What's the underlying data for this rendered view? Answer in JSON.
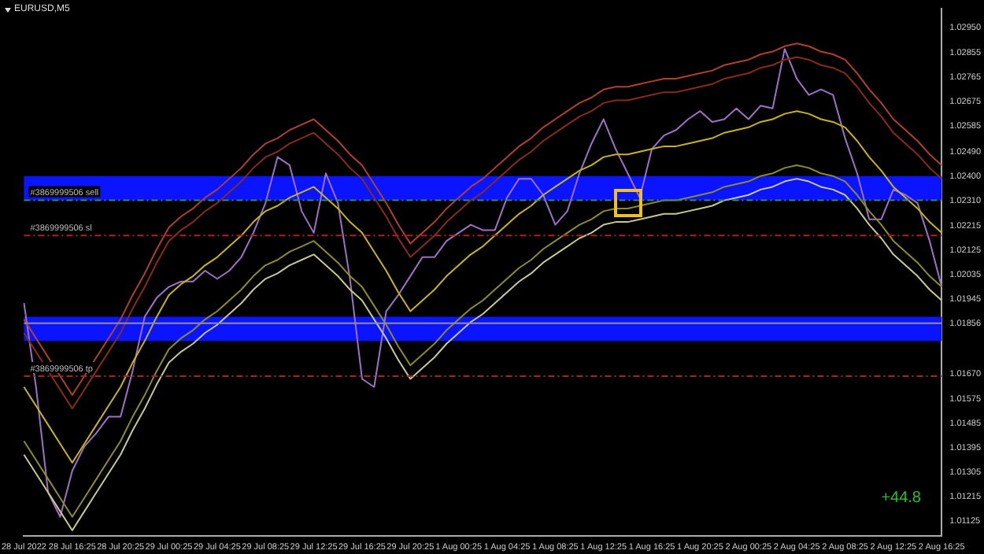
{
  "chart_data": {
    "type": "line",
    "title": "EURUSD,M5",
    "categories": [
      "28 Jul 2022",
      null,
      null,
      null,
      "28 Jul 16:25",
      null,
      null,
      null,
      "28 Jul 20:25",
      null,
      null,
      null,
      "29 Jul 00:25",
      null,
      null,
      null,
      "29 Jul 04:25",
      null,
      null,
      null,
      "29 Jul 08:25",
      null,
      null,
      null,
      "29 Jul 12:25",
      null,
      null,
      null,
      "29 Jul 16:25",
      null,
      null,
      null,
      "29 Jul 20:25",
      null,
      null,
      null,
      "1 Aug 00:25",
      null,
      null,
      null,
      "1 Aug 04:25",
      null,
      null,
      null,
      "1 Aug 08:25",
      null,
      null,
      null,
      "1 Aug 12:25",
      null,
      null,
      null,
      "1 Aug 16:25",
      null,
      null,
      null,
      "1 Aug 20:25",
      null,
      null,
      null,
      "2 Aug 00:25",
      null,
      null,
      null,
      "2 Aug 04:25",
      null,
      null,
      null,
      "2 Aug 08:25",
      null,
      null,
      null,
      "2 Aug 12:25",
      null,
      null,
      null,
      "2 Aug 16:25"
    ],
    "series": [
      {
        "color": "#b0402a",
        "values": [
          1.0187,
          1.018,
          1.0173,
          1.0166,
          1.0159,
          1.0166,
          1.0173,
          1.018,
          1.0187,
          1.0196,
          1.0204,
          1.0213,
          1.0221,
          1.0225,
          1.0228,
          1.0232,
          1.0235,
          1.0239,
          1.0243,
          1.0248,
          1.0252,
          1.0254,
          1.0257,
          1.0259,
          1.0261,
          1.0257,
          1.0253,
          1.0248,
          1.0244,
          1.0237,
          1.023,
          1.0222,
          1.0215,
          1.0219,
          1.0223,
          1.0228,
          1.0232,
          1.0236,
          1.0239,
          1.0243,
          1.0247,
          1.0251,
          1.0254,
          1.0258,
          1.0261,
          1.0264,
          1.0267,
          1.0269,
          1.0272,
          1.0273,
          1.0273,
          1.0274,
          1.0275,
          1.0276,
          1.0276,
          1.0277,
          1.0278,
          1.0279,
          1.0281,
          1.0282,
          1.0283,
          1.0285,
          1.0286,
          1.0288,
          1.0289,
          1.0288,
          1.0286,
          1.0285,
          1.0283,
          1.0278,
          1.0272,
          1.0267,
          1.0261,
          1.0257,
          1.0253,
          1.0248,
          1.0244
        ]
      },
      {
        "color": "#8a2a18",
        "values": [
          1.0182,
          1.0175,
          1.0168,
          1.0161,
          1.0154,
          1.0161,
          1.0168,
          1.0175,
          1.0182,
          1.0191,
          1.0199,
          1.0208,
          1.0216,
          1.022,
          1.0223,
          1.0227,
          1.023,
          1.0234,
          1.0238,
          1.0243,
          1.0247,
          1.0249,
          1.0252,
          1.0254,
          1.0256,
          1.0252,
          1.0248,
          1.0243,
          1.0239,
          1.0232,
          1.0225,
          1.0217,
          1.021,
          1.0214,
          1.0218,
          1.0223,
          1.0227,
          1.0231,
          1.0234,
          1.0238,
          1.0242,
          1.0246,
          1.0249,
          1.0253,
          1.0256,
          1.0259,
          1.0262,
          1.0264,
          1.0267,
          1.0268,
          1.0268,
          1.0269,
          1.027,
          1.0271,
          1.0271,
          1.0272,
          1.0273,
          1.0274,
          1.0276,
          1.0277,
          1.0278,
          1.028,
          1.0281,
          1.0283,
          1.0284,
          1.0283,
          1.0281,
          1.028,
          1.0278,
          1.0273,
          1.0267,
          1.0262,
          1.0256,
          1.0252,
          1.0248,
          1.0243,
          1.0239
        ]
      },
      {
        "color": "#c8b414",
        "values": [
          1.0162,
          1.0155,
          1.0148,
          1.0141,
          1.0134,
          1.0141,
          1.0148,
          1.0155,
          1.0162,
          1.0171,
          1.0179,
          1.0188,
          1.0196,
          1.02,
          1.0203,
          1.0207,
          1.021,
          1.0214,
          1.0218,
          1.0223,
          1.0227,
          1.0229,
          1.0232,
          1.0234,
          1.0236,
          1.0232,
          1.0228,
          1.0223,
          1.0219,
          1.0212,
          1.0205,
          1.0197,
          1.019,
          1.0194,
          1.0198,
          1.0203,
          1.0207,
          1.0211,
          1.0214,
          1.0218,
          1.0222,
          1.0226,
          1.0229,
          1.0233,
          1.0236,
          1.0239,
          1.0242,
          1.0244,
          1.0247,
          1.0248,
          1.0248,
          1.0249,
          1.025,
          1.0251,
          1.0251,
          1.0252,
          1.0253,
          1.0254,
          1.0256,
          1.0257,
          1.0258,
          1.026,
          1.0261,
          1.0263,
          1.0264,
          1.0263,
          1.0261,
          1.026,
          1.0258,
          1.0253,
          1.0247,
          1.0242,
          1.0236,
          1.0232,
          1.0228,
          1.0223,
          1.0219
        ]
      },
      {
        "color": "#8c8c28",
        "values": [
          1.0142,
          1.0135,
          1.0128,
          1.0121,
          1.0114,
          1.0121,
          1.0128,
          1.0135,
          1.0142,
          1.0151,
          1.0159,
          1.0168,
          1.0176,
          1.018,
          1.0183,
          1.0187,
          1.019,
          1.0194,
          1.0198,
          1.0203,
          1.0207,
          1.0209,
          1.0212,
          1.0214,
          1.0216,
          1.0212,
          1.0208,
          1.0203,
          1.0199,
          1.0192,
          1.0185,
          1.0177,
          1.017,
          1.0174,
          1.0178,
          1.0183,
          1.0187,
          1.0191,
          1.0194,
          1.0198,
          1.0202,
          1.0206,
          1.0209,
          1.0213,
          1.0216,
          1.0219,
          1.0222,
          1.0224,
          1.0227,
          1.0228,
          1.0228,
          1.0229,
          1.023,
          1.0231,
          1.0231,
          1.0232,
          1.0233,
          1.0234,
          1.0236,
          1.0237,
          1.0238,
          1.024,
          1.0241,
          1.0243,
          1.0244,
          1.0243,
          1.0241,
          1.024,
          1.0238,
          1.0233,
          1.0227,
          1.0222,
          1.0216,
          1.0212,
          1.0208,
          1.0203,
          1.0199
        ]
      },
      {
        "color": "#c8c890",
        "values": [
          1.0137,
          1.013,
          1.0123,
          1.0116,
          1.0109,
          1.0116,
          1.0123,
          1.013,
          1.0137,
          1.0146,
          1.0154,
          1.0163,
          1.0171,
          1.0175,
          1.0178,
          1.0182,
          1.0185,
          1.0189,
          1.0193,
          1.0198,
          1.0202,
          1.0204,
          1.0207,
          1.0209,
          1.0211,
          1.0207,
          1.0203,
          1.0198,
          1.0194,
          1.0187,
          1.018,
          1.0172,
          1.0165,
          1.0169,
          1.0173,
          1.0178,
          1.0182,
          1.0186,
          1.0189,
          1.0193,
          1.0197,
          1.0201,
          1.0204,
          1.0208,
          1.0211,
          1.0214,
          1.0217,
          1.0219,
          1.0222,
          1.0223,
          1.0223,
          1.0224,
          1.0225,
          1.0226,
          1.0226,
          1.0227,
          1.0228,
          1.0229,
          1.0231,
          1.0232,
          1.0233,
          1.0235,
          1.0236,
          1.0238,
          1.0239,
          1.0238,
          1.0236,
          1.0235,
          1.0233,
          1.0228,
          1.0222,
          1.0217,
          1.0211,
          1.0207,
          1.0203,
          1.0198,
          1.0194
        ]
      },
      {
        "color": "#a070c8",
        "values": [
          1.0193,
          1.0162,
          1.0123,
          1.0114,
          1.0131,
          1.014,
          1.0145,
          1.0151,
          1.0151,
          1.0168,
          1.0188,
          1.0195,
          1.0199,
          1.0201,
          1.0201,
          1.0205,
          1.0202,
          1.0205,
          1.021,
          1.0219,
          1.023,
          1.0247,
          1.0244,
          1.0227,
          1.0219,
          1.0241,
          1.023,
          1.0202,
          1.0165,
          1.0162,
          1.019,
          1.0196,
          1.0203,
          1.021,
          1.021,
          1.0216,
          1.0219,
          1.0222,
          1.022,
          1.022,
          1.0232,
          1.0239,
          1.0239,
          1.0233,
          1.0222,
          1.0227,
          1.0241,
          1.0252,
          1.0261,
          1.025,
          1.0241,
          1.0232,
          1.025,
          1.0255,
          1.0257,
          1.0261,
          1.0264,
          1.026,
          1.0261,
          1.0265,
          1.0261,
          1.0266,
          1.0265,
          1.0287,
          1.0276,
          1.027,
          1.0272,
          1.027,
          1.0254,
          1.0241,
          1.0224,
          1.0224,
          1.0235,
          1.0233,
          1.023,
          1.0216,
          1.0199
        ]
      }
    ],
    "ylim": [
      1.0107,
      1.0302
    ],
    "yticks": [
      {
        "value": 1.0295,
        "label": "1.02950"
      },
      {
        "value": 1.02855,
        "label": "1.02855"
      },
      {
        "value": 1.02765,
        "label": "1.02765"
      },
      {
        "value": 1.02675,
        "label": "1.02675"
      },
      {
        "value": 1.02585,
        "label": "1.02585"
      },
      {
        "value": 1.0249,
        "label": "1.02490"
      },
      {
        "value": 1.024,
        "label": "1.02400"
      },
      {
        "value": 1.0231,
        "label": "1.02310"
      },
      {
        "value": 1.02215,
        "label": "1.02215"
      },
      {
        "value": 1.02125,
        "label": "1.02125"
      },
      {
        "value": 1.02035,
        "label": "1.02035"
      },
      {
        "value": 1.01945,
        "label": "1.01945"
      },
      {
        "value": 1.01856,
        "label": "1.01856"
      },
      {
        "value": 1.0167,
        "label": "1.01670"
      },
      {
        "value": 1.01575,
        "label": "1.01575"
      },
      {
        "value": 1.01485,
        "label": "1.01485"
      },
      {
        "value": 1.01395,
        "label": "1.01395"
      },
      {
        "value": 1.01305,
        "label": "1.01305"
      },
      {
        "value": 1.01215,
        "label": "1.01215"
      },
      {
        "value": 1.01125,
        "label": "1.01125"
      }
    ],
    "bands": [
      {
        "axis": "y",
        "from": 1.0179,
        "to": 1.0188,
        "color": "#0a14ff"
      },
      {
        "axis": "y",
        "from": 1.0231,
        "to": 1.024,
        "color": "#0a14ff"
      }
    ],
    "ref_lines": [
      {
        "axis": "y",
        "value": 1.0231,
        "label": "#3869999506 sell",
        "color": "#3c8c3c",
        "line_style": "dashed"
      },
      {
        "axis": "y",
        "value": 1.0218,
        "label": "#3869999506 sl",
        "color": "#b02020",
        "line_style": "dashed"
      },
      {
        "axis": "y",
        "value": 1.0166,
        "label": "#3869999506 tp",
        "color": "#b02020",
        "line_style": "dashed"
      },
      {
        "axis": "y",
        "value": 1.01856,
        "color": "#909090",
        "line_style": "solid"
      }
    ],
    "annotations": [
      "+44.8"
    ],
    "marker": "none",
    "line_style": "solid",
    "grid": false,
    "legend": false
  }
}
